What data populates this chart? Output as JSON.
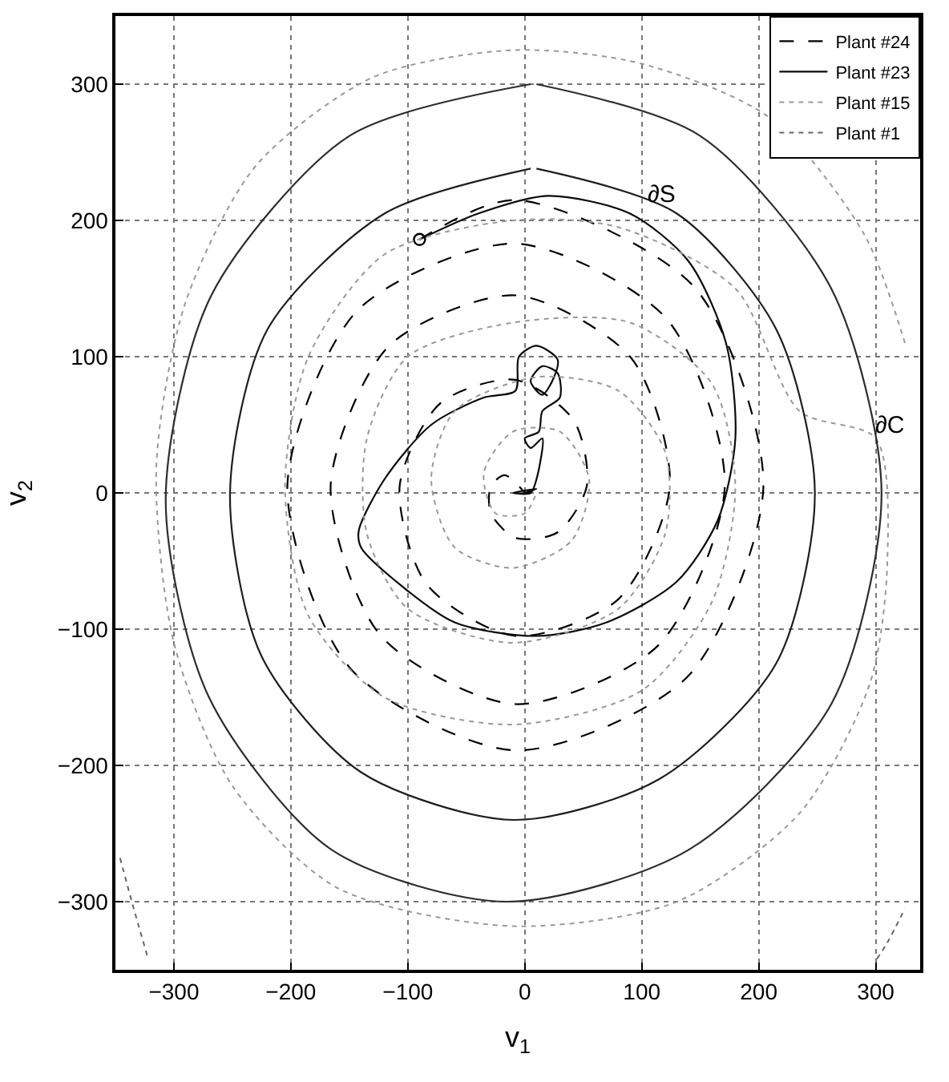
{
  "chart_data": {
    "type": "line",
    "xlabel": "v$_{1}$",
    "ylabel": "v$_{2}$",
    "xlim": [
      -350,
      338
    ],
    "ylim": [
      -350,
      350
    ],
    "xticks": [
      {
        "value": -300,
        "label": "−300"
      },
      {
        "value": -200,
        "label": "−200"
      },
      {
        "value": -100,
        "label": "−100"
      },
      0,
      100,
      200,
      300
    ],
    "yticks": [
      {
        "value": -300,
        "label": "−300"
      },
      {
        "value": -200,
        "label": "−200"
      },
      {
        "value": -100,
        "label": "−100"
      },
      0,
      100,
      200,
      300
    ],
    "grid": true,
    "legend": "top right",
    "marker": "none",
    "annotations": [
      "∂S",
      "∂C"
    ],
    "series": [
      {
        "name": "Plant #24",
        "color": "#000000",
        "line_style": "dashed",
        "x": [
          -90,
          -8,
          145,
          204,
          139,
          -8,
          -149,
          -203,
          -143,
          -8,
          121,
          171,
          114,
          -8,
          -123,
          -166,
          -116,
          -8,
          91,
          124,
          80,
          -8,
          -84,
          -107,
          -72,
          -8,
          42,
          53,
          28,
          -8,
          -29,
          -29,
          -17,
          0
        ],
        "values": [
          186,
          215,
          151,
          5,
          -135,
          -189,
          -129,
          5,
          134,
          183,
          128,
          5,
          -112,
          -155,
          -105,
          5,
          108,
          145,
          99,
          5,
          -78,
          -105,
          -67,
          5,
          66,
          83,
          53,
          5,
          -29,
          -33,
          -15,
          5,
          13,
          0
        ]
      },
      {
        "name": "Plant #23",
        "color": "#0a0a0a",
        "line_style": "solid",
        "x": [
          -90,
          -40,
          20,
          90,
          140,
          172,
          180,
          165,
          130,
          70,
          10,
          -60,
          -110,
          -140,
          -142,
          -120,
          -80,
          -35,
          -8,
          -5,
          10,
          28,
          25,
          15,
          5,
          15,
          28,
          30,
          15,
          12,
          0,
          5,
          15,
          10,
          5,
          -10,
          10,
          0
        ],
        "values": [
          186,
          205,
          218,
          205,
          170,
          110,
          40,
          -20,
          -65,
          -95,
          -105,
          -95,
          -65,
          -40,
          -28,
          10,
          50,
          70,
          75,
          100,
          108,
          98,
          85,
          72,
          82,
          93,
          88,
          70,
          60,
          45,
          40,
          33,
          40,
          10,
          0,
          0,
          3,
          0
        ]
      },
      {
        "name": "Plant #15",
        "color": "#999999",
        "line_style": "dotted",
        "x": [
          325,
          290,
          210,
          100,
          -10,
          -130,
          -230,
          -290,
          -315,
          -300,
          -250,
          -160,
          -10,
          130,
          235,
          295,
          310,
          300,
          235,
          180,
          80,
          -10,
          -120,
          -185,
          -205,
          -185,
          -120,
          -10,
          100,
          160,
          180,
          160,
          90,
          -10,
          -100,
          -135,
          -135,
          -100,
          -10,
          80,
          120,
          120,
          80,
          10,
          -60,
          -80,
          -60,
          -10,
          40,
          55,
          30,
          -10,
          -35,
          -25,
          0,
          10
        ],
        "values": [
          110,
          190,
          275,
          315,
          325,
          305,
          240,
          140,
          20,
          -110,
          -215,
          -290,
          -318,
          -300,
          -235,
          -140,
          -50,
          40,
          60,
          150,
          195,
          200,
          175,
          100,
          5,
          -90,
          -150,
          -170,
          -145,
          -80,
          5,
          80,
          125,
          125,
          100,
          40,
          -30,
          -85,
          -110,
          -85,
          -30,
          30,
          75,
          85,
          60,
          10,
          -40,
          -55,
          -35,
          10,
          45,
          45,
          15,
          -15,
          -15,
          0
        ]
      },
      {
        "name": "Plant #1",
        "color": "#666666",
        "line_style": "dotted",
        "x": [
          -346,
          -336,
          -322,
          null,
          301,
          310,
          325
        ],
        "values": [
          -268,
          -300,
          -342,
          null,
          -342,
          -330,
          -305
        ]
      },
      {
        "color": "#1e1e1e",
        "line_style": "solid",
        "x": [
          10,
          130,
          215,
          248,
          215,
          115,
          -10,
          -140,
          -225,
          -252,
          -220,
          -120,
          5
        ],
        "values": [
          238,
          205,
          120,
          0,
          -125,
          -210,
          -240,
          -205,
          -120,
          0,
          120,
          205,
          238
        ]
      },
      {
        "color": "#2d2d2d",
        "line_style": "solid",
        "x": [
          10,
          150,
          262,
          305,
          262,
          140,
          -15,
          -165,
          -270,
          -307,
          -268,
          -150,
          5
        ],
        "values": [
          300,
          262,
          150,
          0,
          -155,
          -262,
          -300,
          -262,
          -150,
          -5,
          145,
          262,
          300
        ]
      },
      {
        "type": "scatter",
        "color": "#000000",
        "marker": "circle",
        "x": [
          -90
        ],
        "values": [
          186
        ]
      }
    ]
  }
}
